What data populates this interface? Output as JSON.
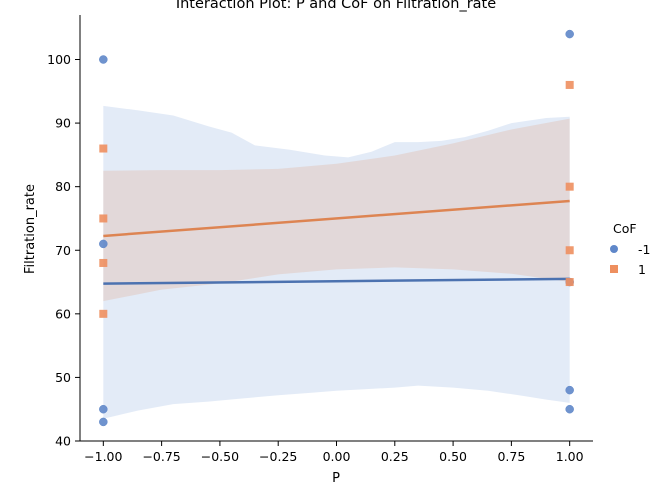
{
  "colors": {
    "series_neg": "#4c72b0",
    "series_pos": "#dd8452",
    "band_neg": "#aec7e8",
    "band_pos": "#dd8452",
    "marker_neg": "#5f87c9",
    "marker_pos": "#ee8f5f"
  },
  "chart_data": {
    "type": "scatter",
    "title": "Interaction Plot: P and CoF on Filtration_rate",
    "xlabel": "P",
    "ylabel": "Filtration_rate",
    "xlim": [
      -1.1,
      1.1
    ],
    "ylim": [
      40,
      107
    ],
    "xticks": [
      -1.0,
      -0.75,
      -0.5,
      -0.25,
      0.0,
      0.25,
      0.5,
      0.75,
      1.0
    ],
    "xtick_labels": [
      "−1.00",
      "−0.75",
      "−0.50",
      "−0.25",
      "0.00",
      "0.25",
      "0.50",
      "0.75",
      "1.00"
    ],
    "yticks": [
      40,
      50,
      60,
      70,
      80,
      90,
      100
    ],
    "ytick_labels": [
      "40",
      "50",
      "60",
      "70",
      "80",
      "90",
      "100"
    ],
    "grid": false,
    "legend": {
      "title": "CoF",
      "placement": "right",
      "entries": [
        "-1",
        "1"
      ]
    },
    "series": [
      {
        "name": "-1",
        "marker": "circle",
        "points": [
          {
            "x": -1,
            "y": 100
          },
          {
            "x": -1,
            "y": 71
          },
          {
            "x": -1,
            "y": 45
          },
          {
            "x": -1,
            "y": 43
          },
          {
            "x": 1,
            "y": 104
          },
          {
            "x": 1,
            "y": 65
          },
          {
            "x": 1,
            "y": 48
          },
          {
            "x": 1,
            "y": 45
          }
        ],
        "fit_line": {
          "x": [
            -1,
            1
          ],
          "y": [
            64.75,
            65.5
          ]
        },
        "ci_upper": [
          [
            -1.0,
            92.7
          ],
          [
            -0.85,
            92.0
          ],
          [
            -0.7,
            91.2
          ],
          [
            -0.55,
            89.5
          ],
          [
            -0.45,
            88.5
          ],
          [
            -0.35,
            86.5
          ],
          [
            -0.2,
            85.8
          ],
          [
            -0.05,
            84.9
          ],
          [
            0.05,
            84.6
          ],
          [
            0.15,
            85.5
          ],
          [
            0.25,
            87.0
          ],
          [
            0.35,
            87.0
          ],
          [
            0.45,
            87.2
          ],
          [
            0.55,
            87.8
          ],
          [
            0.65,
            88.8
          ],
          [
            0.75,
            90.0
          ],
          [
            0.9,
            90.8
          ],
          [
            1.0,
            91.0
          ]
        ],
        "ci_lower": [
          [
            -1.0,
            43.5
          ],
          [
            -0.85,
            44.8
          ],
          [
            -0.7,
            45.8
          ],
          [
            -0.55,
            46.2
          ],
          [
            -0.4,
            46.7
          ],
          [
            -0.25,
            47.2
          ],
          [
            -0.1,
            47.6
          ],
          [
            0.0,
            47.9
          ],
          [
            0.1,
            48.1
          ],
          [
            0.25,
            48.4
          ],
          [
            0.35,
            48.7
          ],
          [
            0.5,
            48.4
          ],
          [
            0.65,
            47.9
          ],
          [
            0.8,
            47.1
          ],
          [
            0.9,
            46.5
          ],
          [
            1.0,
            46.0
          ]
        ]
      },
      {
        "name": "1",
        "marker": "square",
        "points": [
          {
            "x": -1,
            "y": 86
          },
          {
            "x": -1,
            "y": 75
          },
          {
            "x": -1,
            "y": 68
          },
          {
            "x": -1,
            "y": 60
          },
          {
            "x": 1,
            "y": 96
          },
          {
            "x": 1,
            "y": 80
          },
          {
            "x": 1,
            "y": 70
          },
          {
            "x": 1,
            "y": 65
          }
        ],
        "fit_line": {
          "x": [
            -1,
            1
          ],
          "y": [
            72.25,
            77.75
          ]
        },
        "ci_upper": [
          [
            -1.0,
            82.5
          ],
          [
            -0.75,
            82.6
          ],
          [
            -0.5,
            82.6
          ],
          [
            -0.25,
            82.8
          ],
          [
            0.0,
            83.6
          ],
          [
            0.25,
            84.9
          ],
          [
            0.5,
            86.8
          ],
          [
            0.75,
            89.0
          ],
          [
            1.0,
            90.7
          ]
        ],
        "ci_lower": [
          [
            -1.0,
            62.0
          ],
          [
            -0.75,
            63.8
          ],
          [
            -0.5,
            64.8
          ],
          [
            -0.25,
            66.2
          ],
          [
            0.0,
            67.0
          ],
          [
            0.25,
            67.3
          ],
          [
            0.5,
            67.0
          ],
          [
            0.75,
            66.3
          ],
          [
            1.0,
            65.0
          ]
        ]
      }
    ]
  }
}
